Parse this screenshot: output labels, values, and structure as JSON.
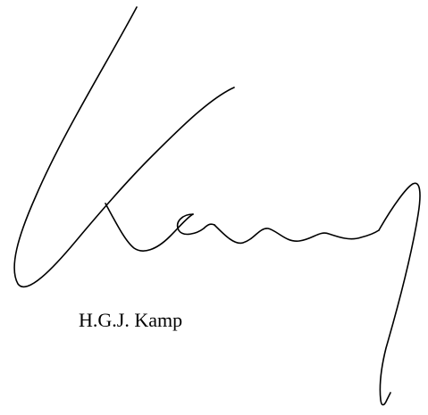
{
  "signature_block": {
    "signature_text": "Kamp",
    "signer_name": "H.G.J. Kamp",
    "ink_color": "#000000"
  }
}
